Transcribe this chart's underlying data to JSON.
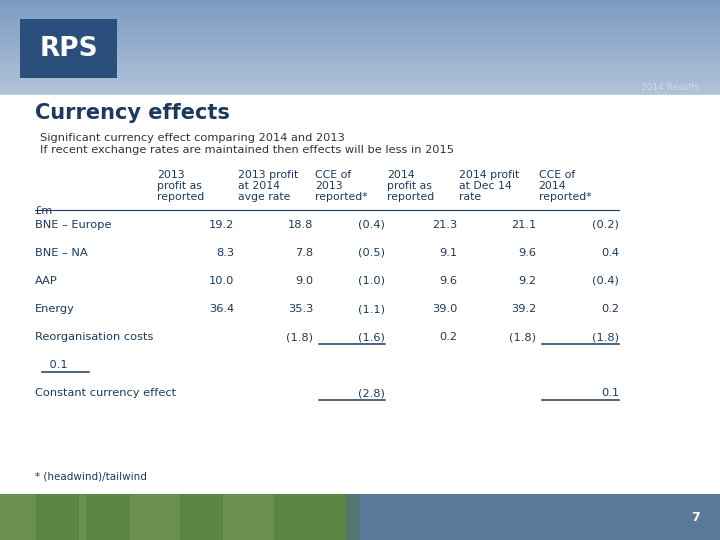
{
  "title": "Currency effects",
  "subtitle_line1": "Significant currency effect comparing 2014 and 2013",
  "subtitle_line2": "If recent exchange rates are maintained then effects will be less in 2015",
  "header_top_label": "2014 Results",
  "rps_logo_text": "RPS",
  "footnote": "* (headwind)/tailwind",
  "page_number": "7",
  "header_labels": [
    "",
    "2013\nprofit as\nreported",
    "2013 profit\nat 2014\navge rate",
    "CCE of\n2013\nreported*",
    "2014\nprofit as\nreported",
    "2014 profit\nat Dec 14\nrate",
    "CCE of\n2014\nreported*"
  ],
  "pound_label": "£m",
  "rows": [
    [
      "BNE – Europe",
      "19.2",
      "18.8",
      "(0.4)",
      "21.3",
      "21.1",
      "(0.2)"
    ],
    [
      "BNE – NA",
      "8.3",
      "7.8",
      "(0.5)",
      "9.1",
      "9.6",
      "0.4"
    ],
    [
      "AAP",
      "10.0",
      "9.0",
      "(1.0)",
      "9.6",
      "9.2",
      "(0.4)"
    ],
    [
      "Energy",
      "36.4",
      "35.3",
      "(1.1)",
      "39.0",
      "39.2",
      "0.2"
    ],
    [
      "Reorganisation costs",
      "",
      "(1.8)",
      "(1.6)",
      "0.2",
      "(1.8)",
      "(1.8)"
    ],
    [
      "    0.1",
      "",
      "",
      "",
      "",
      "",
      ""
    ],
    [
      "Constant currency effect",
      "",
      "",
      "(2.8)",
      "",
      "",
      "0.1"
    ]
  ],
  "text_color": "#1c3a5e",
  "header_color_top": "#b0c4dc",
  "header_color_bottom": "#7a9cbf",
  "logo_bg": "#2a4f7c",
  "white": "#ffffff",
  "bg_header": "#9ab4cc",
  "bottom_green": "#5a8040",
  "bottom_blue": "#4a7090"
}
